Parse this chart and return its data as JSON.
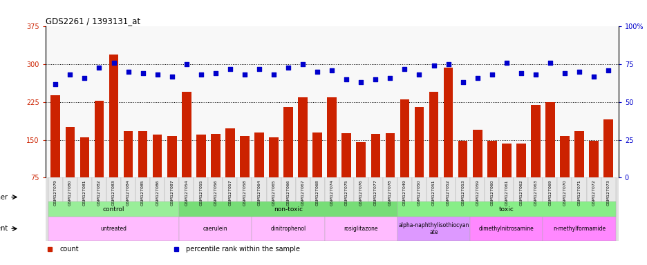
{
  "title": "GDS2261 / 1393131_at",
  "samples": [
    "GSM127079",
    "GSM127080",
    "GSM127081",
    "GSM127082",
    "GSM127083",
    "GSM127084",
    "GSM127085",
    "GSM127086",
    "GSM127087",
    "GSM127054",
    "GSM127055",
    "GSM127056",
    "GSM127057",
    "GSM127058",
    "GSM127064",
    "GSM127065",
    "GSM127066",
    "GSM127067",
    "GSM127068",
    "GSM127074",
    "GSM127075",
    "GSM127076",
    "GSM127077",
    "GSM127078",
    "GSM127049",
    "GSM127050",
    "GSM127051",
    "GSM127052",
    "GSM127053",
    "GSM127059",
    "GSM127060",
    "GSM127061",
    "GSM127062",
    "GSM127063",
    "GSM127069",
    "GSM127070",
    "GSM127071",
    "GSM127072",
    "GSM127073"
  ],
  "counts": [
    238,
    175,
    155,
    228,
    320,
    167,
    167,
    160,
    158,
    245,
    160,
    162,
    173,
    158,
    165,
    155,
    215,
    235,
    165,
    235,
    163,
    145,
    162,
    163,
    230,
    215,
    245,
    293,
    148,
    170,
    148,
    143,
    143,
    220,
    225,
    158,
    167,
    148,
    190
  ],
  "percentiles": [
    62,
    68,
    66,
    73,
    76,
    70,
    69,
    68,
    67,
    75,
    68,
    69,
    72,
    68,
    72,
    68,
    73,
    75,
    70,
    71,
    65,
    63,
    65,
    66,
    72,
    68,
    74,
    75,
    63,
    66,
    68,
    76,
    69,
    68,
    76,
    69,
    70,
    67,
    71
  ],
  "ylim_left": [
    75,
    375
  ],
  "ylim_right": [
    0,
    100
  ],
  "yticks_left": [
    75,
    150,
    225,
    300,
    375
  ],
  "yticks_right": [
    0,
    25,
    50,
    75,
    100
  ],
  "bar_color": "#cc2200",
  "dot_color": "#0000cc",
  "background_color": "#ffffff",
  "plot_bg_color": "#f8f8f8",
  "groups_other": [
    {
      "label": "control",
      "start": 0,
      "end": 9,
      "color": "#99ee99"
    },
    {
      "label": "non-toxic",
      "start": 9,
      "end": 24,
      "color": "#77dd77"
    },
    {
      "label": "toxic",
      "start": 24,
      "end": 39,
      "color": "#88ee88"
    }
  ],
  "groups_agent": [
    {
      "label": "untreated",
      "start": 0,
      "end": 9,
      "color": "#ffbbff"
    },
    {
      "label": "caerulein",
      "start": 9,
      "end": 14,
      "color": "#ffbbff"
    },
    {
      "label": "dinitrophenol",
      "start": 14,
      "end": 19,
      "color": "#ffbbff"
    },
    {
      "label": "rosiglitazone",
      "start": 19,
      "end": 24,
      "color": "#ffbbff"
    },
    {
      "label": "alpha-naphthylisothiocyan\nate",
      "start": 24,
      "end": 29,
      "color": "#dd99ff"
    },
    {
      "label": "dimethylnitrosamine",
      "start": 29,
      "end": 34,
      "color": "#ff88ff"
    },
    {
      "label": "n-methylformamide",
      "start": 34,
      "end": 39,
      "color": "#ff88ff"
    }
  ],
  "group_dividers_other": [
    9,
    24
  ],
  "group_dividers_agent": [
    9,
    14,
    19,
    24,
    29,
    34
  ],
  "dotted_gridlines": [
    150,
    225,
    300
  ],
  "legend_items": [
    {
      "label": "count",
      "color": "#cc2200"
    },
    {
      "label": "percentile rank within the sample",
      "color": "#0000cc"
    }
  ]
}
